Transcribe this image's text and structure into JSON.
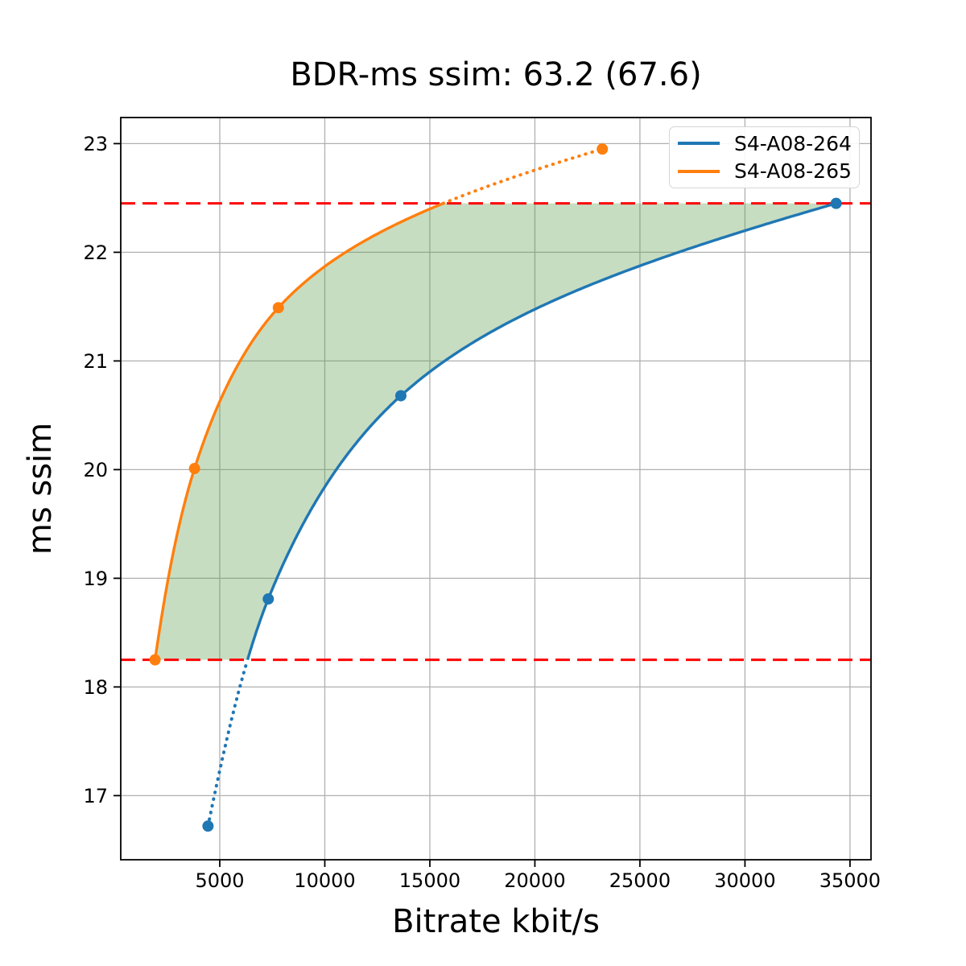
{
  "title": "BDR-ms ssim: 63.2 (67.6)",
  "chart_data": {
    "type": "line",
    "title": "BDR-ms ssim: 63.2 (67.6)",
    "xlabel": "Bitrate kbit/s",
    "ylabel": "ms ssim",
    "xlim": [
      287,
      36000
    ],
    "ylim": [
      16.41,
      23.24
    ],
    "x_ticks": [
      5000,
      10000,
      15000,
      20000,
      25000,
      30000,
      35000
    ],
    "y_ticks": [
      17,
      18,
      19,
      20,
      21,
      22,
      23
    ],
    "grid": true,
    "grid_color": "#b0b0b0",
    "legend_position": "upper right",
    "series": [
      {
        "name": "S4-A08-264",
        "color": "#1f77b4",
        "marker": "circle",
        "points": [
          [
            4440,
            16.72
          ],
          [
            7310,
            18.81
          ],
          [
            13620,
            20.68
          ],
          [
            34340,
            22.45
          ]
        ]
      },
      {
        "name": "S4-A08-265",
        "color": "#ff7f0e",
        "marker": "circle",
        "points": [
          [
            1920,
            18.25
          ],
          [
            3800,
            20.01
          ],
          [
            7790,
            21.49
          ],
          [
            23210,
            22.95
          ]
        ]
      }
    ],
    "reference_lines": [
      {
        "axis": "y",
        "value": 22.45,
        "color": "#ff0000",
        "style": "dashed"
      },
      {
        "axis": "y",
        "value": 18.25,
        "color": "#ff0000",
        "style": "dashed"
      }
    ],
    "overlap_band": {
      "lower": 18.25,
      "upper": 22.45,
      "outside_style": "dotted"
    },
    "shaded_region": {
      "between": [
        "S4-A08-265",
        "S4-A08-264"
      ],
      "clipped_to_band": true,
      "color": "#5f9e50",
      "alpha": 0.35
    }
  }
}
